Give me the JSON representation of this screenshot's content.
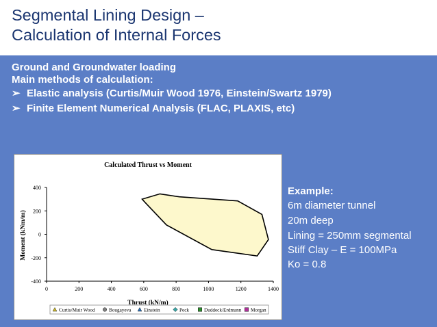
{
  "slide": {
    "title_line1": "Segmental Lining Design –",
    "title_line2": "Calculation of Internal Forces",
    "heading1": "Ground and Groundwater loading",
    "heading2": "Main methods of calculation:",
    "bullets": [
      "Elastic analysis (Curtis/Muir Wood 1976, Einstein/Swartz 1979)",
      "Finite Element Numerical Analysis (FLAC, PLAXIS, etc)"
    ],
    "example": {
      "heading": "Example:",
      "lines": [
        "6m diameter tunnel",
        "20m deep",
        "Lining = 250mm segmental",
        "Stiff Clay – E = 100MPa",
        "Ko = 0.8"
      ]
    }
  },
  "colors": {
    "title": "#1a3570",
    "band": "#5b7ec6",
    "envelope_fill": "#fdf8cc",
    "envelope_stroke": "#000000"
  },
  "chart_data": {
    "type": "area",
    "title": "Calculated Thrust vs Moment",
    "xlabel": "Thrust (kN/m)",
    "ylabel": "Moment (kNm/m)",
    "xlim": [
      0,
      1400
    ],
    "ylim": [
      -400,
      400
    ],
    "xticks": [
      "0",
      "200",
      "400",
      "600",
      "800",
      "1000",
      "1200",
      "1400"
    ],
    "yticks": [
      "-400",
      "-200",
      "0",
      "200",
      "400"
    ],
    "grid": false,
    "legend_position": "bottom",
    "legend": [
      {
        "name": "Curtis/Muir Wood",
        "marker": "triangle",
        "color": "#c9b52c"
      },
      {
        "name": "Bougayeva",
        "marker": "circle",
        "color": "#808080"
      },
      {
        "name": "Einstein",
        "marker": "triangle",
        "color": "#2b6fb3"
      },
      {
        "name": "Peck",
        "marker": "diamond",
        "color": "#3aa6a6"
      },
      {
        "name": "Duddeck/Erdmann",
        "marker": "square",
        "color": "#2e8b2e"
      },
      {
        "name": "Morgan",
        "marker": "square",
        "color": "#b0309a"
      }
    ],
    "envelope": {
      "x": [
        590,
        700,
        820,
        1180,
        1330,
        1370,
        1300,
        1020,
        740,
        610,
        590
      ],
      "y": [
        300,
        345,
        320,
        285,
        170,
        -45,
        -185,
        -130,
        80,
        270,
        300
      ]
    }
  }
}
